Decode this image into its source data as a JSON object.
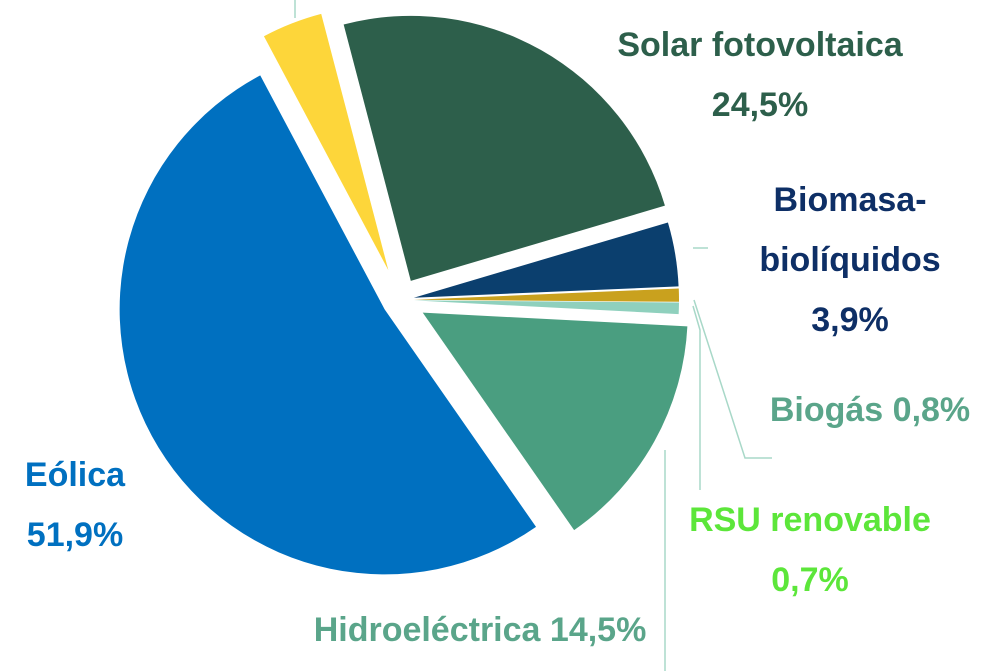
{
  "chart_data": {
    "type": "pie",
    "categories": [
      null,
      "Solar fotovoltaica",
      "Biomasa-biolíquidos",
      "Biogás",
      "RSU renovable",
      "Hidroeléctrica",
      "Eólica"
    ],
    "values": [
      3.7,
      24.5,
      3.9,
      0.8,
      0.7,
      14.5,
      51.9
    ],
    "value_labels": [
      null,
      "24,5%",
      "3,9%",
      "0,8%",
      "0,7%",
      "14,5%",
      "51,9%"
    ],
    "colors": [
      "#fdd63a",
      "#2d5f4b",
      "#0b3f6e",
      "#c9a11e",
      "#8fd0bd",
      "#4a9e80",
      "#0070c0"
    ],
    "label_colors": [
      null,
      "#2d5f4b",
      "#0e2f66",
      "#5aa58a",
      "#5ce63a",
      "#5aa58a",
      "#0070c0"
    ]
  }
}
